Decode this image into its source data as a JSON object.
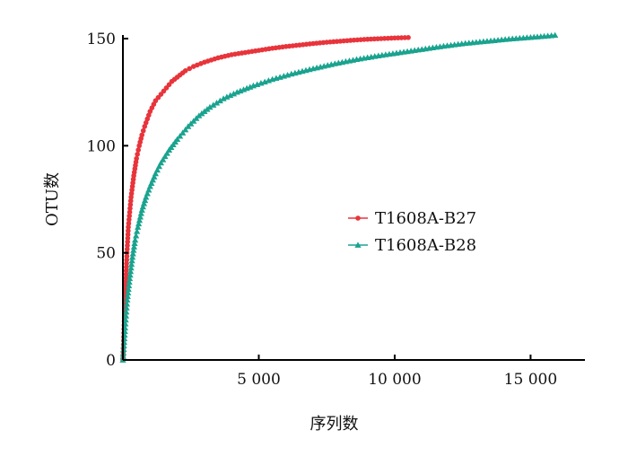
{
  "chart_data": {
    "type": "line",
    "title": "",
    "xlabel": "序列数",
    "ylabel": "OTU数",
    "xlim": [
      0,
      17000
    ],
    "ylim": [
      0,
      150
    ],
    "xticks": [
      5000,
      10000,
      15000
    ],
    "xtick_labels": [
      "5 000",
      "10 000",
      "15 000"
    ],
    "yticks": [
      0,
      50,
      100,
      150
    ],
    "ytick_labels": [
      "0",
      "50",
      "100",
      "150"
    ],
    "grid": false,
    "legend_position": "center-right",
    "series": [
      {
        "name": "T1608A-B27",
        "color": "#e8343b",
        "marker": "circle",
        "x": [
          0,
          50,
          100,
          150,
          200,
          300,
          400,
          500,
          600,
          700,
          800,
          1000,
          1200,
          1400,
          1600,
          1800,
          2000,
          2300,
          2600,
          3000,
          3500,
          4000,
          4500,
          5000,
          5500,
          6000,
          6500,
          7000,
          7500,
          8000,
          8500,
          9000,
          9500,
          10000,
          10500
        ],
        "y": [
          0,
          18,
          35,
          50,
          62,
          76,
          86,
          94,
          100,
          105,
          109,
          116,
          121,
          124,
          127,
          130,
          132,
          135,
          137,
          139,
          141,
          142.5,
          143.5,
          144.5,
          145.5,
          146.3,
          147,
          147.7,
          148.3,
          148.8,
          149.3,
          149.7,
          150,
          150.3,
          150.5
        ]
      },
      {
        "name": "T1608A-B28",
        "color": "#1aa38f",
        "marker": "triangle",
        "x": [
          0,
          80,
          160,
          250,
          350,
          450,
          550,
          700,
          850,
          1000,
          1200,
          1400,
          1700,
          2000,
          2400,
          2800,
          3200,
          3700,
          4200,
          4800,
          5500,
          6200,
          7000,
          7800,
          8600,
          9400,
          10200,
          11000,
          11800,
          12600,
          13400,
          14200,
          15000,
          15500,
          15900
        ],
        "y": [
          0,
          15,
          28,
          38,
          48,
          56,
          62,
          70,
          76,
          81,
          87,
          92,
          98,
          103,
          109,
          114,
          118,
          122,
          125,
          128,
          131,
          133.5,
          136,
          138.3,
          140.3,
          142,
          143.5,
          145,
          146.5,
          147.8,
          148.8,
          149.8,
          150.6,
          151.1,
          151.6
        ]
      }
    ]
  }
}
